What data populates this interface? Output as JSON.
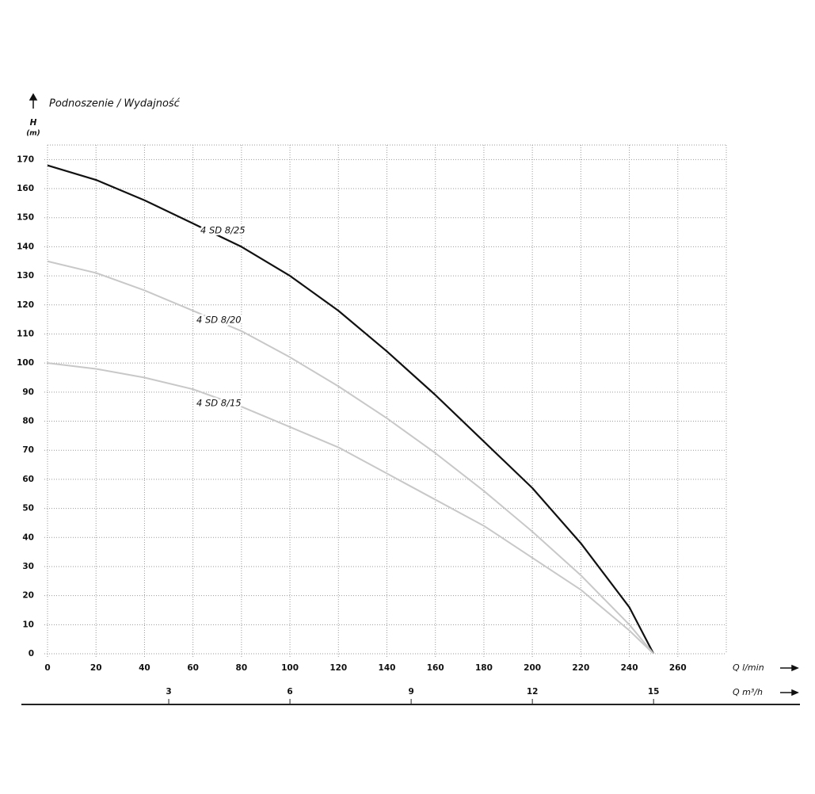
{
  "chart_data": {
    "type": "line",
    "title": "Podnoszenie / Wydajność",
    "y_label": "H",
    "y_unit": "(m)",
    "x_label": "Q l/min",
    "x2_label": "Q m³/h",
    "x": [
      0,
      20,
      40,
      60,
      80,
      100,
      120,
      140,
      160,
      180,
      200,
      220,
      240,
      250
    ],
    "series": [
      {
        "name": "4 SD 8/25",
        "color": "#111111",
        "values": [
          168,
          163,
          156,
          148,
          140,
          130,
          118,
          104,
          89,
          73,
          57,
          38,
          16,
          0
        ]
      },
      {
        "name": "4 SD 8/20",
        "color": "#c8c8c8",
        "values": [
          135,
          131,
          125,
          118,
          111,
          102,
          92,
          81,
          69,
          56,
          42,
          27,
          10,
          0
        ]
      },
      {
        "name": "4 SD 8/15",
        "color": "#c8c8c8",
        "values": [
          100,
          98,
          95,
          91,
          85,
          78,
          71,
          62,
          53,
          44,
          33,
          22,
          8,
          0
        ]
      }
    ],
    "xlim": [
      0,
      280
    ],
    "xticks": [
      0,
      20,
      40,
      60,
      80,
      100,
      120,
      140,
      160,
      180,
      200,
      220,
      240,
      260
    ],
    "x2lim": [
      0,
      16.8
    ],
    "x2ticks": [
      3,
      6,
      9,
      12,
      15
    ],
    "ylim": [
      0,
      175
    ],
    "yticks": [
      0,
      10,
      20,
      30,
      40,
      50,
      60,
      70,
      80,
      90,
      100,
      110,
      120,
      130,
      140,
      150,
      160,
      170
    ],
    "grid": true
  }
}
